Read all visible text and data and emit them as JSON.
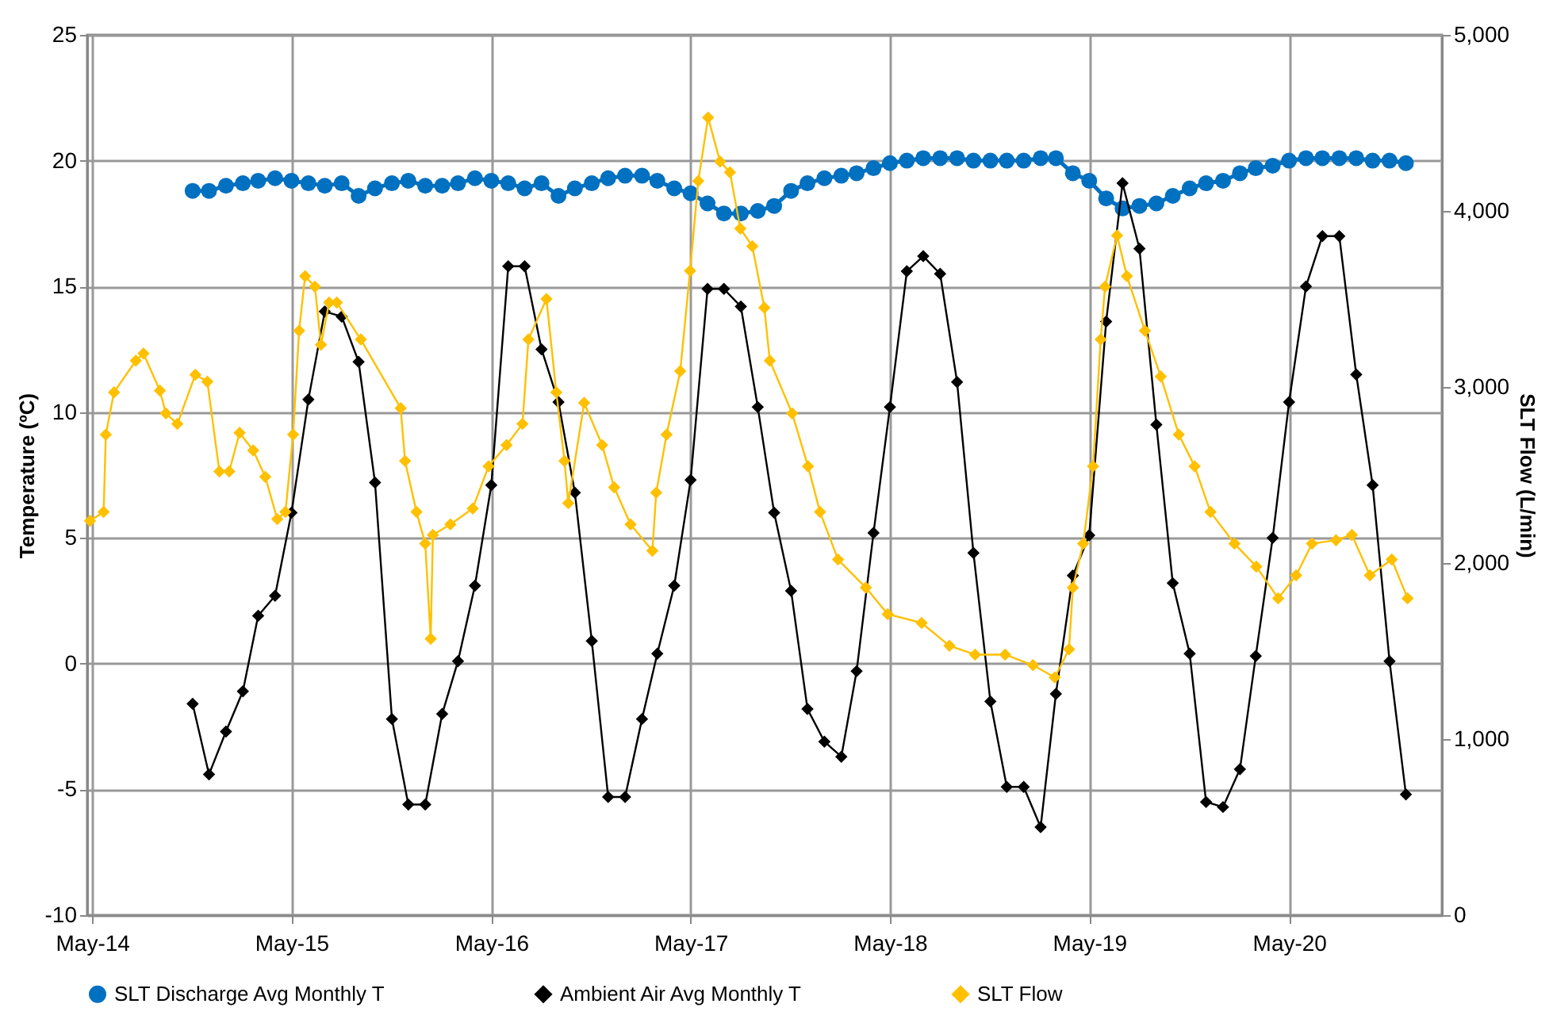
{
  "chart_data": {
    "type": "line",
    "ylabel": "Temperature (ºC)",
    "y2label": "SLT Flow (L/min)",
    "xlim": [
      "2014-04-22",
      "2021-02-05"
    ],
    "xticks": [
      {
        "value": "2014-05-01",
        "label": "May-14"
      },
      {
        "value": "2015-05-01",
        "label": "May-15"
      },
      {
        "value": "2016-05-01",
        "label": "May-16"
      },
      {
        "value": "2017-05-01",
        "label": "May-17"
      },
      {
        "value": "2018-05-01",
        "label": "May-18"
      },
      {
        "value": "2019-05-01",
        "label": "May-19"
      },
      {
        "value": "2020-05-01",
        "label": "May-20"
      }
    ],
    "ylim": [
      -10,
      25
    ],
    "yticks": [
      -10,
      -5,
      0,
      5,
      10,
      15,
      20,
      25
    ],
    "y2lim": [
      0,
      5000
    ],
    "y2ticks": [
      0,
      {
        "value": 1000,
        "label": "1,000"
      },
      {
        "value": 2000,
        "label": "2,000"
      },
      {
        "value": 3000,
        "label": "3,000"
      },
      {
        "value": 4000,
        "label": "4,000"
      },
      {
        "value": 5000,
        "label": "5,000"
      }
    ],
    "grid": true,
    "legend": "bottom",
    "series": [
      {
        "name": "SLT Discharge Avg Monthly T",
        "color": "#0070c0",
        "marker": "circle",
        "x": [
          "2014-11",
          "2014-12",
          "2015-01",
          "2015-02",
          "2015-03",
          "2015-04",
          "2015-05",
          "2015-06",
          "2015-07",
          "2015-08",
          "2015-09",
          "2015-10",
          "2015-11",
          "2015-12",
          "2016-01",
          "2016-02",
          "2016-03",
          "2016-04",
          "2016-05",
          "2016-06",
          "2016-07",
          "2016-08",
          "2016-09",
          "2016-10",
          "2016-11",
          "2016-12",
          "2017-01",
          "2017-02",
          "2017-03",
          "2017-04",
          "2017-05",
          "2017-06",
          "2017-07",
          "2017-08",
          "2017-09",
          "2017-10",
          "2017-11",
          "2017-12",
          "2018-01",
          "2018-02",
          "2018-03",
          "2018-04",
          "2018-05",
          "2018-06",
          "2018-07",
          "2018-08",
          "2018-09",
          "2018-10",
          "2018-11",
          "2018-12",
          "2019-01",
          "2019-02",
          "2019-03",
          "2019-04",
          "2019-05",
          "2019-06",
          "2019-07",
          "2019-08",
          "2019-09",
          "2019-10",
          "2019-11",
          "2019-12",
          "2020-01",
          "2020-02",
          "2020-03",
          "2020-04",
          "2020-05",
          "2020-06",
          "2020-07",
          "2020-08",
          "2020-09",
          "2020-10",
          "2020-11",
          "2020-12"
        ],
        "values": [
          18.8,
          18.8,
          19.0,
          19.1,
          19.2,
          19.3,
          19.2,
          19.1,
          19.0,
          19.1,
          18.6,
          18.9,
          19.1,
          19.2,
          19.0,
          19.0,
          19.1,
          19.3,
          19.2,
          19.1,
          18.9,
          19.1,
          18.6,
          18.9,
          19.1,
          19.3,
          19.4,
          19.4,
          19.2,
          18.9,
          18.7,
          18.3,
          17.9,
          17.9,
          18.0,
          18.2,
          18.8,
          19.1,
          19.3,
          19.4,
          19.5,
          19.7,
          19.9,
          20.0,
          20.1,
          20.1,
          20.1,
          20.0,
          20.0,
          20.0,
          20.0,
          20.1,
          20.1,
          19.5,
          19.2,
          18.5,
          18.1,
          18.2,
          18.3,
          18.6,
          18.9,
          19.1,
          19.2,
          19.5,
          19.7,
          19.8,
          20.0,
          20.1,
          20.1,
          20.1,
          20.1,
          20.0,
          20.0,
          19.9
        ]
      },
      {
        "name": "Ambient Air Avg Monthly T",
        "color": "#000000",
        "marker": "diamond",
        "x": [
          "2014-11",
          "2014-12",
          "2015-01",
          "2015-02",
          "2015-03",
          "2015-04",
          "2015-05",
          "2015-06",
          "2015-07",
          "2015-08",
          "2015-09",
          "2015-10",
          "2015-11",
          "2015-12",
          "2016-01",
          "2016-02",
          "2016-03",
          "2016-04",
          "2016-05",
          "2016-06",
          "2016-07",
          "2016-08",
          "2016-09",
          "2016-10",
          "2016-11",
          "2016-12",
          "2017-01",
          "2017-02",
          "2017-03",
          "2017-04",
          "2017-05",
          "2017-06",
          "2017-07",
          "2017-08",
          "2017-09",
          "2017-10",
          "2017-11",
          "2017-12",
          "2018-01",
          "2018-02",
          "2018-03",
          "2018-04",
          "2018-05",
          "2018-06",
          "2018-07",
          "2018-08",
          "2018-09",
          "2018-10",
          "2018-11",
          "2018-12",
          "2019-01",
          "2019-02",
          "2019-03",
          "2019-04",
          "2019-05",
          "2019-06",
          "2019-07",
          "2019-08",
          "2019-09",
          "2019-10",
          "2019-11",
          "2019-12",
          "2020-01",
          "2020-02",
          "2020-03",
          "2020-04",
          "2020-05",
          "2020-06",
          "2020-07",
          "2020-08",
          "2020-09",
          "2020-10",
          "2020-11",
          "2020-12"
        ],
        "values": [
          -1.6,
          -4.4,
          -2.7,
          -1.1,
          1.9,
          2.7,
          6.0,
          10.5,
          14.0,
          13.8,
          12.0,
          7.2,
          -2.2,
          -5.6,
          -5.6,
          -2.0,
          0.1,
          3.1,
          7.1,
          15.8,
          15.8,
          12.5,
          10.4,
          6.8,
          0.9,
          -5.3,
          -5.3,
          -2.2,
          0.4,
          3.1,
          7.3,
          14.9,
          14.9,
          14.2,
          10.2,
          6.0,
          2.9,
          -1.8,
          -3.1,
          -3.7,
          -0.3,
          5.2,
          10.2,
          15.6,
          16.2,
          15.5,
          11.2,
          4.4,
          -1.5,
          -4.9,
          -4.9,
          -6.5,
          -1.2,
          3.5,
          5.1,
          13.6,
          19.1,
          16.5,
          9.5,
          3.2,
          0.4,
          -5.5,
          -5.7,
          -4.2,
          0.3,
          5.0,
          10.4,
          15.0,
          17.0,
          17.0,
          11.5,
          7.1,
          0.1,
          -5.2
        ]
      },
      {
        "name": "SLT Flow",
        "color": "#ffc000",
        "marker": "diamond",
        "axis": "y2",
        "x": [
          "2014-04-27",
          "2014-05-22",
          "2014-05-26",
          "2014-06-10",
          "2014-07-20",
          "2014-08-03",
          "2014-09-02",
          "2014-09-13",
          "2014-10-04",
          "2014-11-06",
          "2014-11-28",
          "2014-12-20",
          "2015-01-07",
          "2015-01-26",
          "2015-02-20",
          "2015-03-14",
          "2015-04-05",
          "2015-04-20",
          "2015-05-04",
          "2015-05-15",
          "2015-05-26",
          "2015-06-13",
          "2015-06-24",
          "2015-07-09",
          "2015-07-23",
          "2015-09-05",
          "2015-11-17",
          "2015-11-25",
          "2015-12-16",
          "2016-01-01",
          "2016-01-11",
          "2016-01-15",
          "2016-02-16",
          "2016-03-28",
          "2016-04-26",
          "2016-05-29",
          "2016-06-27",
          "2016-07-08",
          "2016-08-10",
          "2016-08-28",
          "2016-09-12",
          "2016-09-19",
          "2016-10-18",
          "2016-11-20",
          "2016-12-12",
          "2017-01-11",
          "2017-02-20",
          "2017-02-27",
          "2017-03-18",
          "2017-04-12",
          "2017-04-30",
          "2017-05-15",
          "2017-06-02",
          "2017-06-24",
          "2017-07-12",
          "2017-07-31",
          "2017-08-22",
          "2017-09-13",
          "2017-09-23",
          "2017-11-03",
          "2017-12-02",
          "2017-12-24",
          "2018-01-26",
          "2018-03-18",
          "2018-04-27",
          "2018-06-28",
          "2018-08-18",
          "2018-10-04",
          "2018-11-28",
          "2019-01-18",
          "2019-02-27",
          "2019-03-25",
          "2019-04-01",
          "2019-04-20",
          "2019-05-08",
          "2019-05-22",
          "2019-05-30",
          "2019-06-21",
          "2019-07-09",
          "2019-08-11",
          "2019-09-09",
          "2019-10-12",
          "2019-11-10",
          "2019-12-09",
          "2020-01-22",
          "2020-03-02",
          "2020-04-11",
          "2020-05-14",
          "2020-06-12",
          "2020-07-26",
          "2020-08-24",
          "2020-09-26",
          "2020-11-05",
          "2020-12-04"
        ],
        "values": [
          2240,
          2290,
          2730,
          2970,
          3150,
          3190,
          2980,
          2850,
          2790,
          3070,
          3030,
          2520,
          2520,
          2740,
          2640,
          2490,
          2250,
          2290,
          2730,
          3320,
          3630,
          3570,
          3240,
          3480,
          3480,
          3270,
          2880,
          2580,
          2290,
          2110,
          1570,
          2160,
          2220,
          2310,
          2550,
          2670,
          2790,
          3270,
          3500,
          2970,
          2580,
          2340,
          2910,
          2670,
          2430,
          2220,
          2070,
          2400,
          2730,
          3090,
          3660,
          4170,
          4530,
          4280,
          4220,
          3900,
          3800,
          3450,
          3150,
          2850,
          2550,
          2290,
          2020,
          1860,
          1710,
          1660,
          1530,
          1480,
          1480,
          1420,
          1350,
          1510,
          1860,
          2110,
          2550,
          3270,
          3570,
          3860,
          3630,
          3320,
          3060,
          2730,
          2550,
          2290,
          2110,
          1980,
          1800,
          1930,
          2110,
          2130,
          2160,
          1930,
          2020,
          1800
        ]
      }
    ]
  }
}
